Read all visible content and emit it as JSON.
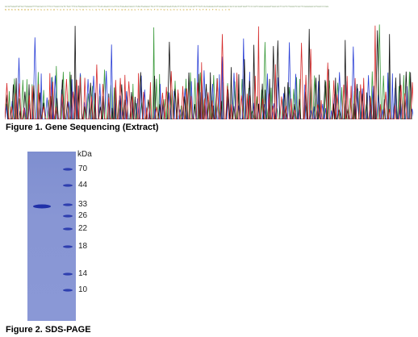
{
  "figure1": {
    "caption": "Figure 1. Gene Sequencing (Extract)",
    "colors": {
      "A": "#3a9a3a",
      "C": "#2a3fd6",
      "G": "#111111",
      "T": "#d62a2a"
    }
  },
  "figure2": {
    "caption": "Figure 2. SDS-PAGE",
    "unit": "kDa",
    "markers": [
      "70",
      "44",
      "33",
      "26",
      "22",
      "18",
      "14",
      "10"
    ],
    "band_color": "#1f2fa8",
    "gel_color": "#8592d3"
  }
}
